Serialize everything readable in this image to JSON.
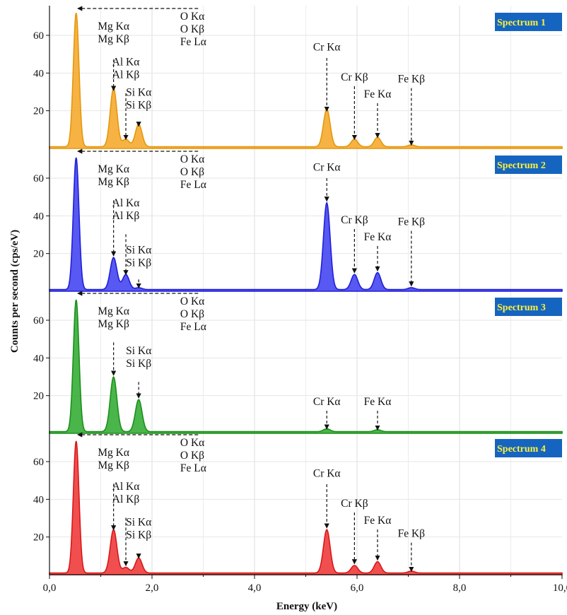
{
  "chart_data": {
    "type": "area",
    "xlabel": "Energy (keV)",
    "ylabel": "Counts per second (cps/eV)",
    "xlim": [
      0,
      10
    ],
    "ylim": [
      0,
      75
    ],
    "x_ticks": [
      "0,0",
      "2,0",
      "4,0",
      "6,0",
      "8,0",
      "10,0"
    ],
    "y_ticks": [
      "20",
      "40",
      "60"
    ],
    "grid": true,
    "panels": [
      {
        "name": "Spectrum 1",
        "color": "#f5a623",
        "stroke": "#e6960a",
        "peaks": [
          {
            "x": 0.52,
            "y": 71
          },
          {
            "x": 1.25,
            "y": 31
          },
          {
            "x": 1.49,
            "y": 4
          },
          {
            "x": 1.74,
            "y": 12
          },
          {
            "x": 5.41,
            "y": 20
          },
          {
            "x": 5.95,
            "y": 4
          },
          {
            "x": 6.4,
            "y": 5
          },
          {
            "x": 7.06,
            "y": 1
          }
        ],
        "annotations": [
          {
            "lines": [
              "Mg Kα",
              "Mg Kβ"
            ],
            "x": 1.25,
            "tx": 1.25,
            "ty": 63,
            "y_top": 54,
            "y_bot": 30
          },
          {
            "lines": [
              "Al Kα",
              "Al Kβ"
            ],
            "x": 1.49,
            "tx": 1.49,
            "ty": 44,
            "y_top": 36,
            "y_bot": 4
          },
          {
            "lines": [
              "Si Kα",
              "Si Kβ"
            ],
            "x": 1.74,
            "tx": 1.74,
            "ty": 28,
            "y_top": 20,
            "y_bot": 11
          },
          {
            "lines": [
              "Cr Kα"
            ],
            "x": 5.41,
            "tx": 5.41,
            "ty": 52,
            "y_top": 48,
            "y_bot": 19
          },
          {
            "lines": [
              "Cr Kβ"
            ],
            "x": 5.95,
            "tx": 5.95,
            "ty": 36,
            "y_top": 33,
            "y_bot": 4
          },
          {
            "lines": [
              "Fe Kα"
            ],
            "x": 6.4,
            "tx": 6.4,
            "ty": 27,
            "y_top": 24,
            "y_bot": 5
          },
          {
            "lines": [
              "Fe Kβ"
            ],
            "x": 7.06,
            "tx": 7.06,
            "ty": 35,
            "y_top": 32,
            "y_bot": 1
          }
        ],
        "left_label": [
          "O Kα",
          "O Kβ",
          "Fe Lα"
        ]
      },
      {
        "name": "Spectrum 2",
        "color": "#3b3bf0",
        "stroke": "#1f1fd8",
        "peaks": [
          {
            "x": 0.52,
            "y": 70
          },
          {
            "x": 1.25,
            "y": 17
          },
          {
            "x": 1.49,
            "y": 8
          },
          {
            "x": 1.74,
            "y": 1
          },
          {
            "x": 5.41,
            "y": 46
          },
          {
            "x": 5.95,
            "y": 8
          },
          {
            "x": 6.4,
            "y": 9
          },
          {
            "x": 7.06,
            "y": 1
          }
        ],
        "annotations": [
          {
            "lines": [
              "Mg Kα",
              "Mg Kβ"
            ],
            "x": 1.25,
            "tx": 1.25,
            "ty": 63,
            "y_top": 55,
            "y_bot": 18
          },
          {
            "lines": [
              "Al Kα",
              "Al Kβ"
            ],
            "x": 1.49,
            "tx": 1.49,
            "ty": 45,
            "y_top": 37,
            "y_bot": 8
          },
          {
            "lines": [
              "Si Kα",
              "Si Kβ"
            ],
            "x": 1.74,
            "tx": 1.74,
            "ty": 20,
            "y_top": 13,
            "y_bot": 1
          },
          {
            "lines": [
              "Cr Kα"
            ],
            "x": 5.41,
            "tx": 5.41,
            "ty": 64,
            "y_top": 60,
            "y_bot": 47
          },
          {
            "lines": [
              "Cr Kβ"
            ],
            "x": 5.95,
            "tx": 5.95,
            "ty": 36,
            "y_top": 33,
            "y_bot": 9
          },
          {
            "lines": [
              "Fe Kα"
            ],
            "x": 6.4,
            "tx": 6.4,
            "ty": 27,
            "y_top": 24,
            "y_bot": 10
          },
          {
            "lines": [
              "Fe Kβ"
            ],
            "x": 7.06,
            "tx": 7.06,
            "ty": 35,
            "y_top": 32,
            "y_bot": 2
          }
        ],
        "left_label": [
          "O Kα",
          "O Kβ",
          "Fe Lα"
        ]
      },
      {
        "name": "Spectrum 3",
        "color": "#2aa82a",
        "stroke": "#1b8f1b",
        "peaks": [
          {
            "x": 0.52,
            "y": 70
          },
          {
            "x": 1.25,
            "y": 29
          },
          {
            "x": 1.74,
            "y": 17
          },
          {
            "x": 5.41,
            "y": 1.5
          },
          {
            "x": 6.4,
            "y": 1
          }
        ],
        "annotations": [
          {
            "lines": [
              "Mg Kα",
              "Mg Kβ"
            ],
            "x": 1.25,
            "tx": 1.25,
            "ty": 63,
            "y_top": 55,
            "y_bot": 30
          },
          {
            "lines": [
              "Si Kα",
              "Si Kβ"
            ],
            "x": 1.74,
            "tx": 1.74,
            "ty": 42,
            "y_top": 34,
            "y_bot": 18
          },
          {
            "lines": [
              "Cr Kα"
            ],
            "x": 5.41,
            "tx": 5.41,
            "ty": 15,
            "y_top": 12,
            "y_bot": 1.5
          },
          {
            "lines": [
              "Fe Kα"
            ],
            "x": 6.4,
            "tx": 6.4,
            "ty": 15,
            "y_top": 12,
            "y_bot": 1
          }
        ],
        "left_label": [
          "O Kα",
          "O Kβ",
          "Fe Lα"
        ]
      },
      {
        "name": "Spectrum 4",
        "color": "#ee3030",
        "stroke": "#d81818",
        "peaks": [
          {
            "x": 0.52,
            "y": 70
          },
          {
            "x": 1.25,
            "y": 23
          },
          {
            "x": 1.49,
            "y": 3
          },
          {
            "x": 1.74,
            "y": 8
          },
          {
            "x": 5.41,
            "y": 23
          },
          {
            "x": 5.95,
            "y": 4
          },
          {
            "x": 6.4,
            "y": 6
          },
          {
            "x": 7.06,
            "y": 1
          }
        ],
        "annotations": [
          {
            "lines": [
              "Mg Kα",
              "Mg Kβ"
            ],
            "x": 1.25,
            "tx": 1.25,
            "ty": 63,
            "y_top": 55,
            "y_bot": 23
          },
          {
            "lines": [
              "Al Kα",
              "Al Kβ"
            ],
            "x": 1.49,
            "tx": 1.49,
            "ty": 45,
            "y_top": 37,
            "y_bot": 4
          },
          {
            "lines": [
              "Si Kα",
              "Si Kβ"
            ],
            "x": 1.74,
            "tx": 1.74,
            "ty": 26,
            "y_top": 18,
            "y_bot": 8
          },
          {
            "lines": [
              "Cr Kα"
            ],
            "x": 5.41,
            "tx": 5.41,
            "ty": 52,
            "y_top": 48,
            "y_bot": 24
          },
          {
            "lines": [
              "Cr Kβ"
            ],
            "x": 5.95,
            "tx": 5.95,
            "ty": 36,
            "y_top": 33,
            "y_bot": 5
          },
          {
            "lines": [
              "Fe Kα"
            ],
            "x": 6.4,
            "tx": 6.4,
            "ty": 27,
            "y_top": 24,
            "y_bot": 7
          },
          {
            "lines": [
              "Fe Kβ"
            ],
            "x": 7.06,
            "tx": 7.06,
            "ty": 20,
            "y_top": 17,
            "y_bot": 1
          }
        ],
        "left_label": [
          "O Kα",
          "O Kβ",
          "Fe Lα"
        ]
      }
    ]
  }
}
